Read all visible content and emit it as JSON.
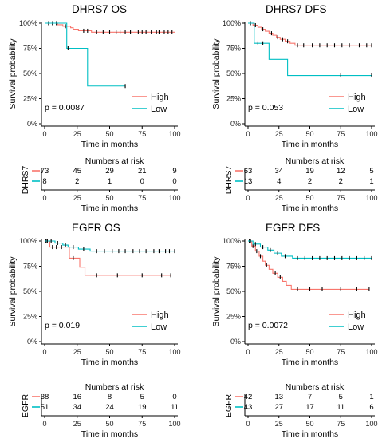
{
  "colors": {
    "high": "#F8766D",
    "low": "#00BFC4"
  },
  "chart_data": [
    {
      "type": "line",
      "title": "DHRS7 OS",
      "xlabel": "Time in months",
      "ylabel": "Survival probability",
      "xlim": [
        0,
        100
      ],
      "ylim": [
        0,
        1
      ],
      "x_ticks": [
        "0",
        "25",
        "50",
        "75",
        "100"
      ],
      "y_ticks": [
        "0%",
        "25%",
        "50%",
        "75%",
        "100%"
      ],
      "pvalue": "p = 0.0087",
      "legend": [
        "High",
        "Low"
      ],
      "legend_position": "bottom-right",
      "series": [
        {
          "name": "High",
          "color": "#F8766D",
          "steps": [
            [
              0,
              1
            ],
            [
              10,
              0.985
            ],
            [
              14,
              0.97
            ],
            [
              20,
              0.955
            ],
            [
              22,
              0.94
            ],
            [
              26,
              0.925
            ],
            [
              36,
              0.91
            ],
            [
              100,
              0.91
            ]
          ],
          "censor": [
            [
              3,
              1
            ],
            [
              6,
              1
            ],
            [
              9,
              1
            ],
            [
              16,
              0.97
            ],
            [
              30,
              0.925
            ],
            [
              33,
              0.925
            ],
            [
              40,
              0.91
            ],
            [
              45,
              0.91
            ],
            [
              50,
              0.91
            ],
            [
              55,
              0.91
            ],
            [
              58,
              0.91
            ],
            [
              62,
              0.91
            ],
            [
              66,
              0.91
            ],
            [
              72,
              0.91
            ],
            [
              75,
              0.91
            ],
            [
              78,
              0.91
            ],
            [
              82,
              0.91
            ],
            [
              86,
              0.91
            ],
            [
              88,
              0.91
            ],
            [
              92,
              0.91
            ],
            [
              95,
              0.91
            ],
            [
              98,
              0.91
            ]
          ]
        },
        {
          "name": "Low",
          "color": "#00BFC4",
          "steps": [
            [
              0,
              1
            ],
            [
              17,
              0.75
            ],
            [
              33,
              0.375
            ],
            [
              62,
              0.375
            ]
          ],
          "censor": [
            [
              18,
              0.75
            ],
            [
              62,
              0.375
            ]
          ]
        }
      ],
      "risk_table": {
        "title": "Numbers at risk",
        "label": "DHRS7",
        "times": [
          0,
          25,
          50,
          75,
          100
        ],
        "high": [
          "73",
          "45",
          "29",
          "21",
          "9"
        ],
        "low": [
          "8",
          "2",
          "1",
          "0",
          "0"
        ]
      }
    },
    {
      "type": "line",
      "title": "DHRS7 DFS",
      "xlabel": "Time in months",
      "ylabel": "Survival probability",
      "xlim": [
        0,
        100
      ],
      "ylim": [
        0,
        1
      ],
      "x_ticks": [
        "0",
        "25",
        "50",
        "75",
        "100"
      ],
      "y_ticks": [
        "0%",
        "25%",
        "50%",
        "75%",
        "100%"
      ],
      "pvalue": "p = 0.053",
      "legend": [
        "High",
        "Low"
      ],
      "legend_position": "bottom-right",
      "series": [
        {
          "name": "High",
          "color": "#F8766D",
          "steps": [
            [
              0,
              1
            ],
            [
              4,
              0.98
            ],
            [
              8,
              0.96
            ],
            [
              11,
              0.94
            ],
            [
              14,
              0.92
            ],
            [
              17,
              0.9
            ],
            [
              20,
              0.88
            ],
            [
              23,
              0.86
            ],
            [
              26,
              0.84
            ],
            [
              30,
              0.82
            ],
            [
              34,
              0.8
            ],
            [
              38,
              0.78
            ],
            [
              100,
              0.78
            ]
          ],
          "censor": [
            [
              2,
              1
            ],
            [
              6,
              0.98
            ],
            [
              12,
              0.94
            ],
            [
              19,
              0.9
            ],
            [
              24,
              0.86
            ],
            [
              28,
              0.84
            ],
            [
              32,
              0.82
            ],
            [
              40,
              0.78
            ],
            [
              45,
              0.78
            ],
            [
              52,
              0.78
            ],
            [
              58,
              0.78
            ],
            [
              64,
              0.78
            ],
            [
              70,
              0.78
            ],
            [
              76,
              0.78
            ],
            [
              82,
              0.78
            ],
            [
              90,
              0.78
            ],
            [
              96,
              0.78
            ],
            [
              100,
              0.78
            ]
          ]
        },
        {
          "name": "Low",
          "color": "#00BFC4",
          "steps": [
            [
              0,
              1
            ],
            [
              5,
              0.8
            ],
            [
              17,
              0.64
            ],
            [
              32,
              0.48
            ],
            [
              100,
              0.48
            ]
          ],
          "censor": [
            [
              8,
              0.8
            ],
            [
              12,
              0.8
            ],
            [
              75,
              0.48
            ],
            [
              100,
              0.48
            ]
          ]
        }
      ],
      "risk_table": {
        "title": "Numbers at risk",
        "label": "DHRS7",
        "times": [
          0,
          25,
          50,
          75,
          100
        ],
        "high": [
          "63",
          "34",
          "19",
          "12",
          "5"
        ],
        "low": [
          "13",
          "4",
          "2",
          "2",
          "1"
        ]
      }
    },
    {
      "type": "line",
      "title": "EGFR OS",
      "xlabel": "Time in months",
      "ylabel": "Survival probability",
      "xlim": [
        0,
        100
      ],
      "ylim": [
        0,
        1
      ],
      "x_ticks": [
        "0",
        "25",
        "50",
        "75",
        "100"
      ],
      "y_ticks": [
        "0%",
        "25%",
        "50%",
        "75%",
        "100%"
      ],
      "pvalue": "p = 0.019",
      "legend": [
        "High",
        "Low"
      ],
      "legend_position": "bottom-right",
      "series": [
        {
          "name": "High",
          "color": "#F8766D",
          "steps": [
            [
              0,
              1
            ],
            [
              4,
              0.94
            ],
            [
              19,
              0.83
            ],
            [
              27,
              0.74
            ],
            [
              31,
              0.66
            ],
            [
              97,
              0.66
            ]
          ],
          "censor": [
            [
              1,
              1
            ],
            [
              2,
              1
            ],
            [
              6,
              0.94
            ],
            [
              9,
              0.94
            ],
            [
              13,
              0.94
            ],
            [
              22,
              0.83
            ],
            [
              40,
              0.66
            ],
            [
              56,
              0.66
            ],
            [
              75,
              0.66
            ],
            [
              90,
              0.66
            ],
            [
              97,
              0.66
            ]
          ]
        },
        {
          "name": "Low",
          "color": "#00BFC4",
          "steps": [
            [
              0,
              1
            ],
            [
              8,
              0.98
            ],
            [
              14,
              0.96
            ],
            [
              18,
              0.94
            ],
            [
              26,
              0.92
            ],
            [
              35,
              0.9
            ],
            [
              100,
              0.9
            ]
          ],
          "censor": [
            [
              2,
              1
            ],
            [
              5,
              1
            ],
            [
              10,
              0.98
            ],
            [
              16,
              0.96
            ],
            [
              22,
              0.94
            ],
            [
              30,
              0.92
            ],
            [
              40,
              0.9
            ],
            [
              46,
              0.9
            ],
            [
              52,
              0.9
            ],
            [
              57,
              0.9
            ],
            [
              62,
              0.9
            ],
            [
              68,
              0.9
            ],
            [
              73,
              0.9
            ],
            [
              78,
              0.9
            ],
            [
              84,
              0.9
            ],
            [
              88,
              0.9
            ],
            [
              93,
              0.9
            ],
            [
              96,
              0.9
            ],
            [
              100,
              0.9
            ]
          ]
        }
      ],
      "risk_table": {
        "title": "Numbers at risk",
        "label": "EGFR",
        "times": [
          0,
          25,
          50,
          75,
          100
        ],
        "high": [
          "38",
          "16",
          "8",
          "5",
          "0"
        ],
        "low": [
          "51",
          "34",
          "24",
          "19",
          "11"
        ]
      }
    },
    {
      "type": "line",
      "title": "EGFR DFS",
      "xlabel": "Time in months",
      "ylabel": "Survival probability",
      "xlim": [
        0,
        100
      ],
      "ylim": [
        0,
        1
      ],
      "x_ticks": [
        "0",
        "25",
        "50",
        "75",
        "100"
      ],
      "y_ticks": [
        "0%",
        "25%",
        "50%",
        "75%",
        "100%"
      ],
      "pvalue": "p = 0.0072",
      "legend": [
        "High",
        "Low"
      ],
      "legend_position": "bottom-right",
      "series": [
        {
          "name": "High",
          "color": "#F8766D",
          "steps": [
            [
              0,
              1
            ],
            [
              3,
              0.95
            ],
            [
              6,
              0.9
            ],
            [
              9,
              0.85
            ],
            [
              12,
              0.8
            ],
            [
              14,
              0.76
            ],
            [
              17,
              0.72
            ],
            [
              20,
              0.68
            ],
            [
              24,
              0.64
            ],
            [
              28,
              0.6
            ],
            [
              31,
              0.56
            ],
            [
              35,
              0.52
            ],
            [
              98,
              0.52
            ]
          ],
          "censor": [
            [
              1,
              1
            ],
            [
              4,
              0.95
            ],
            [
              7,
              0.9
            ],
            [
              10,
              0.85
            ],
            [
              15,
              0.76
            ],
            [
              22,
              0.68
            ],
            [
              26,
              0.64
            ],
            [
              40,
              0.52
            ],
            [
              50,
              0.52
            ],
            [
              60,
              0.52
            ],
            [
              75,
              0.52
            ],
            [
              88,
              0.52
            ],
            [
              98,
              0.52
            ]
          ]
        },
        {
          "name": "Low",
          "color": "#00BFC4",
          "steps": [
            [
              0,
              1
            ],
            [
              4,
              0.97
            ],
            [
              10,
              0.94
            ],
            [
              16,
              0.91
            ],
            [
              21,
              0.88
            ],
            [
              27,
              0.85
            ],
            [
              36,
              0.83
            ],
            [
              100,
              0.83
            ]
          ],
          "censor": [
            [
              2,
              1
            ],
            [
              6,
              0.97
            ],
            [
              12,
              0.94
            ],
            [
              18,
              0.91
            ],
            [
              24,
              0.88
            ],
            [
              30,
              0.85
            ],
            [
              40,
              0.83
            ],
            [
              46,
              0.83
            ],
            [
              52,
              0.83
            ],
            [
              58,
              0.83
            ],
            [
              64,
              0.83
            ],
            [
              70,
              0.83
            ],
            [
              76,
              0.83
            ],
            [
              82,
              0.83
            ],
            [
              88,
              0.83
            ],
            [
              94,
              0.83
            ],
            [
              100,
              0.83
            ]
          ]
        }
      ],
      "risk_table": {
        "title": "Numbers at risk",
        "label": "EGFR",
        "times": [
          0,
          25,
          50,
          75,
          100
        ],
        "high": [
          "42",
          "13",
          "7",
          "5",
          "1"
        ],
        "low": [
          "43",
          "27",
          "17",
          "11",
          "6"
        ]
      }
    }
  ]
}
